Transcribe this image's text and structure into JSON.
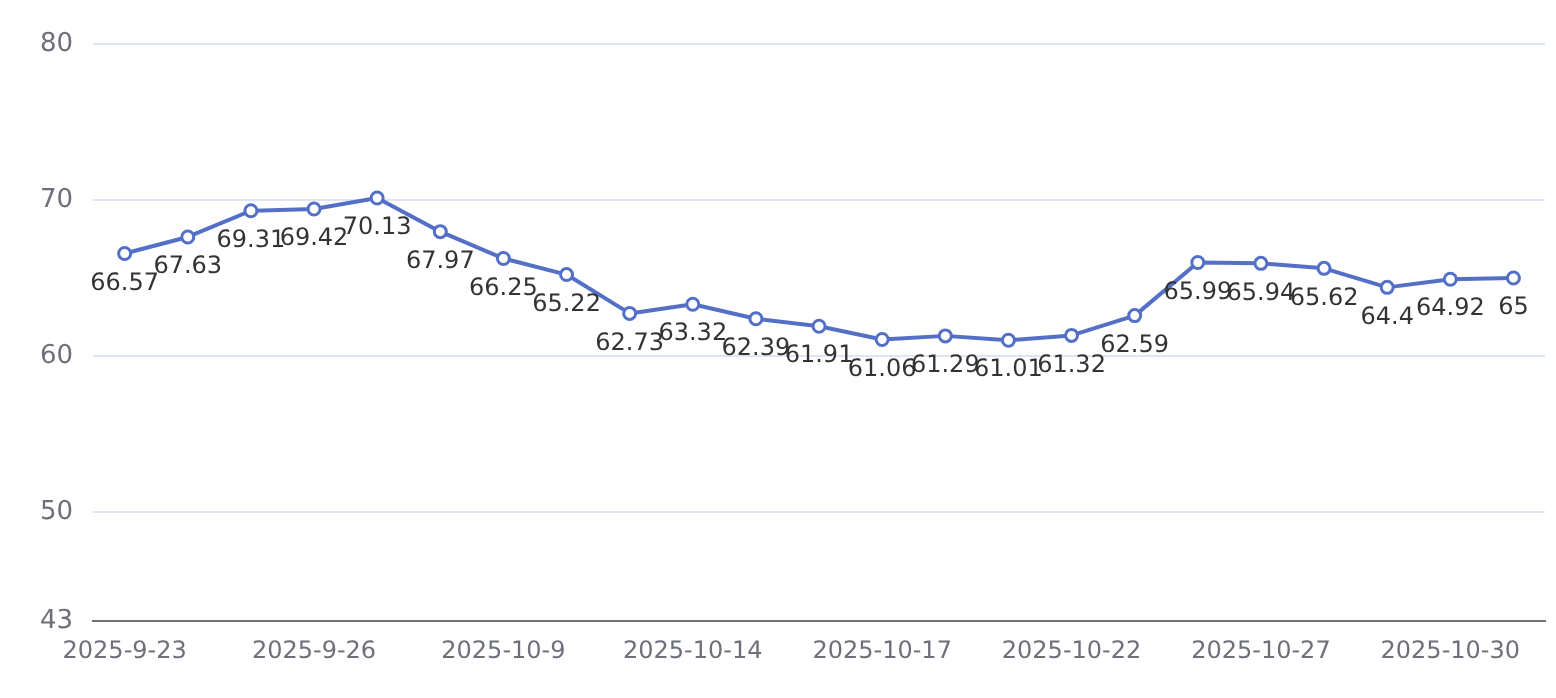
{
  "chart_data": {
    "type": "line",
    "categories": [
      "2025-9-23",
      null,
      null,
      "2025-9-26",
      null,
      null,
      "2025-10-9",
      null,
      null,
      "2025-10-14",
      null,
      null,
      "2025-10-17",
      null,
      null,
      "2025-10-22",
      null,
      null,
      "2025-10-27",
      null,
      null,
      "2025-10-30",
      null
    ],
    "series": [
      {
        "color": "#5470c6",
        "values": [
          66.57,
          67.63,
          69.31,
          69.42,
          70.13,
          67.97,
          66.25,
          65.22,
          62.73,
          63.32,
          62.39,
          61.91,
          61.06,
          61.29,
          61.01,
          61.32,
          62.59,
          65.99,
          65.94,
          65.62,
          64.4,
          64.92,
          65
        ]
      }
    ],
    "ylim": [
      43,
      80
    ],
    "yticks": [
      43,
      50,
      60,
      70,
      80
    ],
    "grid": "y",
    "legend": false,
    "marker": "circle",
    "line_style": "solid",
    "data_labels": true
  }
}
